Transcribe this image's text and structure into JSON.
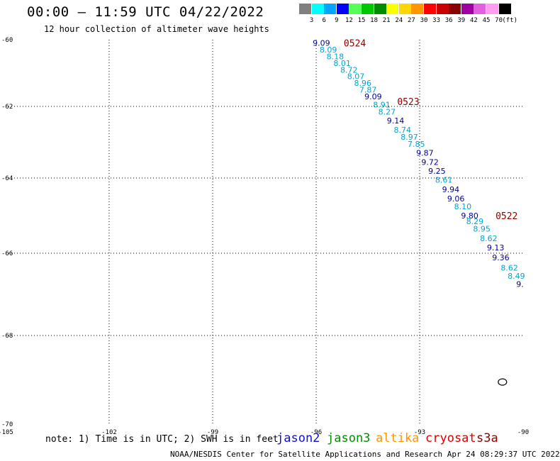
{
  "header": {
    "title": "00:00 – 11:59 UTC 04/22/2022",
    "subtitle": "12 hour collection of altimeter wave heights"
  },
  "colorbar": {
    "unit": "(ft)",
    "swatches": [
      {
        "color": "#808080",
        "label": "3"
      },
      {
        "color": "#00ffff",
        "label": "6"
      },
      {
        "color": "#00a5ff",
        "label": "9"
      },
      {
        "color": "#0000ff",
        "label": "12"
      },
      {
        "color": "#55ff55",
        "label": "15"
      },
      {
        "color": "#00c800",
        "label": "18"
      },
      {
        "color": "#008c00",
        "label": "21"
      },
      {
        "color": "#ffff00",
        "label": "24"
      },
      {
        "color": "#ffd700",
        "label": "27"
      },
      {
        "color": "#ff9600",
        "label": "30"
      },
      {
        "color": "#ff0000",
        "label": "33"
      },
      {
        "color": "#c80000",
        "label": "36"
      },
      {
        "color": "#8b0000",
        "label": "39"
      },
      {
        "color": "#a000a0",
        "label": "42"
      },
      {
        "color": "#e060e0",
        "label": "45"
      },
      {
        "color": "#ff9ef0",
        "label": "70"
      },
      {
        "color": "#000000",
        "label": ""
      }
    ]
  },
  "map": {
    "lon_range": [
      -105,
      -90
    ],
    "lat_range": [
      -70,
      -60
    ],
    "lon_ticks": [
      {
        "value": -105,
        "label": "-105"
      },
      {
        "value": -102,
        "label": "-102"
      },
      {
        "value": -99,
        "label": "-99"
      },
      {
        "value": -96,
        "label": "-96"
      },
      {
        "value": -93,
        "label": "-93"
      },
      {
        "value": -90,
        "label": "-90"
      }
    ],
    "lat_ticks": [
      {
        "value": -60,
        "label": "-60"
      },
      {
        "value": -62,
        "label": "-62"
      },
      {
        "value": -64,
        "label": "-64"
      },
      {
        "value": -66,
        "label": "-66"
      },
      {
        "value": -68,
        "label": "-68"
      },
      {
        "value": -70,
        "label": "-70"
      }
    ],
    "grid": "dotted",
    "track_colors": {
      "dark": "#00009c",
      "light": "#00a5d0",
      "time": "#8b0000"
    },
    "time_labels": [
      {
        "text": "0524",
        "lon": -95.2,
        "lat": -60.1
      },
      {
        "text": "0523",
        "lon": -93.65,
        "lat": -61.85
      },
      {
        "text": "0522",
        "lon": -90.8,
        "lat": -65.0
      }
    ],
    "wave_heights": [
      {
        "text": "9.09",
        "lon": -96.1,
        "lat": -60.1,
        "shade": "dark"
      },
      {
        "text": "8.09",
        "lon": -95.9,
        "lat": -60.3,
        "shade": "light"
      },
      {
        "text": "8.18",
        "lon": -95.7,
        "lat": -60.5,
        "shade": "light"
      },
      {
        "text": "8.01",
        "lon": -95.5,
        "lat": -60.7,
        "shade": "light"
      },
      {
        "text": "8.72",
        "lon": -95.3,
        "lat": -60.9,
        "shade": "light"
      },
      {
        "text": "8.07",
        "lon": -95.1,
        "lat": -61.1,
        "shade": "light"
      },
      {
        "text": "8.96",
        "lon": -94.9,
        "lat": -61.3,
        "shade": "light"
      },
      {
        "text": "7.87",
        "lon": -94.75,
        "lat": -61.5,
        "shade": "light"
      },
      {
        "text": "9.09",
        "lon": -94.6,
        "lat": -61.7,
        "shade": "dark"
      },
      {
        "text": "8.91",
        "lon": -94.35,
        "lat": -61.95,
        "shade": "light"
      },
      {
        "text": "8.27",
        "lon": -94.2,
        "lat": -62.15,
        "shade": "light"
      },
      {
        "text": "9.14",
        "lon": -93.95,
        "lat": -62.4,
        "shade": "dark"
      },
      {
        "text": "8.74",
        "lon": -93.75,
        "lat": -62.65,
        "shade": "light"
      },
      {
        "text": "8.97",
        "lon": -93.55,
        "lat": -62.85,
        "shade": "light"
      },
      {
        "text": "7.85",
        "lon": -93.35,
        "lat": -63.05,
        "shade": "light"
      },
      {
        "text": "9.87",
        "lon": -93.1,
        "lat": -63.3,
        "shade": "dark"
      },
      {
        "text": "9.72",
        "lon": -92.95,
        "lat": -63.55,
        "shade": "dark"
      },
      {
        "text": "9.25",
        "lon": -92.75,
        "lat": -63.8,
        "shade": "dark"
      },
      {
        "text": "8.61",
        "lon": -92.55,
        "lat": -64.05,
        "shade": "light"
      },
      {
        "text": "9.94",
        "lon": -92.35,
        "lat": -64.3,
        "shade": "dark"
      },
      {
        "text": "9.06",
        "lon": -92.2,
        "lat": -64.55,
        "shade": "dark"
      },
      {
        "text": "8.10",
        "lon": -92.0,
        "lat": -64.75,
        "shade": "light"
      },
      {
        "text": "9.80",
        "lon": -91.8,
        "lat": -65.0,
        "shade": "dark"
      },
      {
        "text": "8.29",
        "lon": -91.65,
        "lat": -65.15,
        "shade": "light"
      },
      {
        "text": "8.95",
        "lon": -91.45,
        "lat": -65.35,
        "shade": "light"
      },
      {
        "text": "8.62",
        "lon": -91.25,
        "lat": -65.6,
        "shade": "light"
      },
      {
        "text": "9.13",
        "lon": -91.05,
        "lat": -65.85,
        "shade": "dark"
      },
      {
        "text": "9.36",
        "lon": -90.9,
        "lat": -66.1,
        "shade": "dark"
      },
      {
        "text": "8.62",
        "lon": -90.65,
        "lat": -66.35,
        "shade": "light"
      },
      {
        "text": "8.49",
        "lon": -90.45,
        "lat": -66.55,
        "shade": "light"
      },
      {
        "text": "9.",
        "lon": -90.2,
        "lat": -66.75,
        "shade": "dark"
      }
    ],
    "island": {
      "lon": -90.6,
      "lat": -69.05
    }
  },
  "note": "note: 1) Time is in UTC; 2) SWH is in feet",
  "satellites": [
    {
      "name": "jason2",
      "color": "#1010d0"
    },
    {
      "name": "jason3",
      "color": "#009000"
    },
    {
      "name": "altika",
      "color": "#ff9600"
    },
    {
      "name": "cryosat",
      "color": "#e00000"
    },
    {
      "name": "s3a",
      "color": "#8b0000"
    }
  ],
  "footer": "NOAA/NESDIS Center for Satellite Applications and Research   Apr 24 08:29:37 UTC 2022"
}
